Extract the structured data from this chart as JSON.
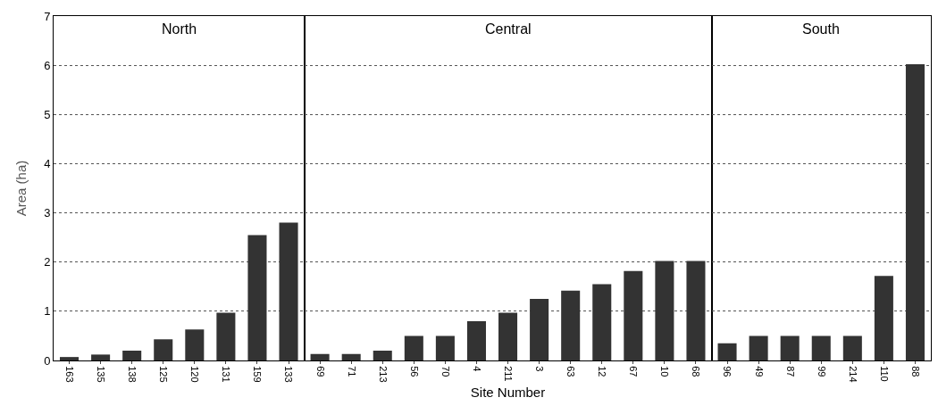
{
  "chart_data": [
    {
      "type": "bar",
      "title": "North",
      "ylabel": "Area (ha)",
      "categories": [
        "163",
        "135",
        "138",
        "125",
        "120",
        "131",
        "159",
        "133"
      ],
      "values": [
        0.07,
        0.12,
        0.2,
        0.43,
        0.63,
        0.97,
        2.55,
        2.8
      ],
      "color": "#333333",
      "ylim": [
        0,
        7
      ],
      "yticks": [
        0,
        1,
        2,
        3,
        4,
        5,
        6,
        7
      ],
      "grid": "y"
    },
    {
      "type": "bar",
      "title": "Central",
      "xlabel": "Site Number",
      "categories": [
        "69",
        "71",
        "213",
        "56",
        "70",
        "4",
        "211",
        "3",
        "63",
        "12",
        "67",
        "10",
        "68"
      ],
      "values": [
        0.13,
        0.13,
        0.2,
        0.5,
        0.5,
        0.8,
        0.97,
        1.25,
        1.42,
        1.55,
        1.82,
        2.02,
        2.02
      ],
      "color": "#333333",
      "ylim": [
        0,
        7
      ],
      "yticks": [
        0,
        1,
        2,
        3,
        4,
        5,
        6,
        7
      ],
      "grid": "y",
      "tick_labels": "x"
    },
    {
      "type": "bar",
      "title": "South",
      "categories": [
        "96",
        "49",
        "87",
        "99",
        "214",
        "110",
        "88"
      ],
      "values": [
        0.35,
        0.5,
        0.5,
        0.5,
        0.5,
        1.72,
        6.02
      ],
      "color": "#333333",
      "ylim": [
        0,
        7
      ],
      "yticks": [
        0,
        1,
        2,
        3,
        4,
        5,
        6,
        7
      ],
      "grid": "y",
      "tick_labels": "x"
    }
  ]
}
